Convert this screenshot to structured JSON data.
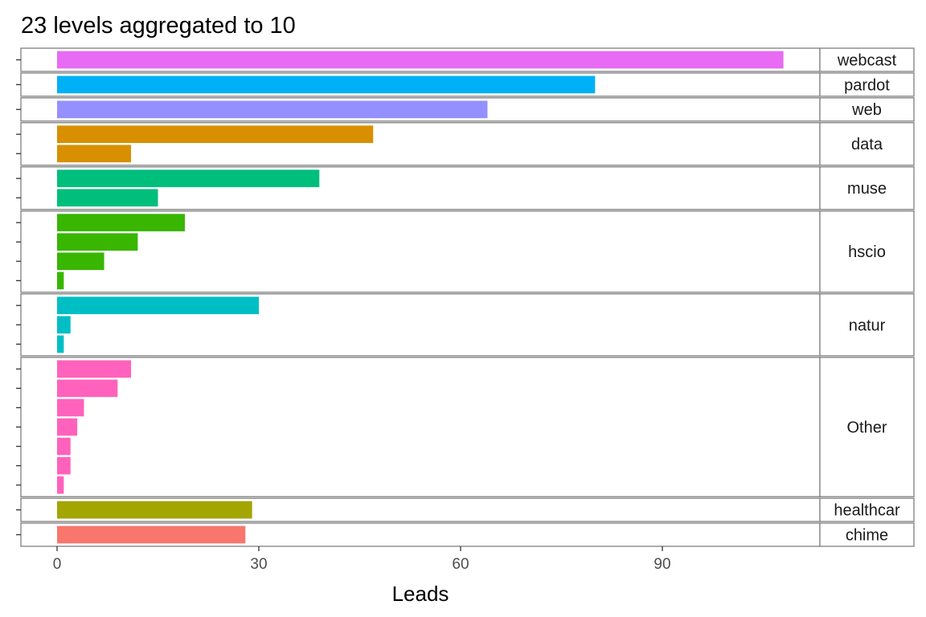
{
  "chart_data": {
    "type": "bar",
    "orientation": "horizontal",
    "title": "23 levels aggregated to 10",
    "xlabel": "Leads",
    "ylabel": "",
    "xlim": [
      0,
      113
    ],
    "xticks": [
      0,
      30,
      60,
      90
    ],
    "grid": false,
    "legend": "none",
    "facets": [
      {
        "name": "webcast",
        "color": "#E76BF3",
        "values": [
          108
        ]
      },
      {
        "name": "pardot",
        "color": "#00B0F6",
        "values": [
          80
        ]
      },
      {
        "name": "web",
        "color": "#9590FF",
        "values": [
          64
        ]
      },
      {
        "name": "data",
        "color": "#D89000",
        "values": [
          47,
          11
        ]
      },
      {
        "name": "muse",
        "color": "#00BF7D",
        "values": [
          39,
          15
        ]
      },
      {
        "name": "hscio",
        "color": "#39B600",
        "values": [
          19,
          12,
          7,
          1
        ]
      },
      {
        "name": "natur",
        "color": "#00BFC4",
        "values": [
          30,
          2,
          1
        ]
      },
      {
        "name": "Other",
        "color": "#FF62BC",
        "values": [
          11,
          9,
          4,
          3,
          2,
          2,
          1
        ]
      },
      {
        "name": "healthcar",
        "color": "#A3A500",
        "values": [
          29
        ]
      },
      {
        "name": "chime",
        "color": "#F8766D",
        "values": [
          28
        ]
      }
    ]
  }
}
